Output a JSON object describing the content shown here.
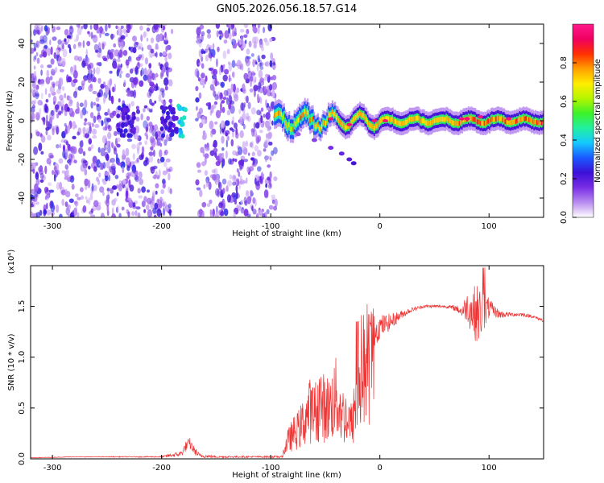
{
  "title": "GN05.2026.056.18.57.G14",
  "chart_data": [
    {
      "type": "heatmap",
      "name": "spectrogram",
      "xlabel": "Height of straight line (km)",
      "ylabel": "Frequency (Hz)",
      "xlim": [
        -320,
        150
      ],
      "ylim": [
        -50,
        50
      ],
      "x_ticks": [
        -300,
        -200,
        -100,
        0,
        100
      ],
      "y_ticks": [
        -40,
        -20,
        0,
        20,
        40
      ],
      "grid": false,
      "colorbar": {
        "label": "Normalized spectral amplitude",
        "range": [
          0.0,
          1.0
        ],
        "ticks": [
          0.0,
          0.2,
          0.4,
          0.6,
          0.8
        ],
        "colormap": "rainbow (white-violet-blue-cyan-green-yellow-red-magenta)",
        "colors": [
          "#ffffff",
          "#b98cf0",
          "#7a2ee6",
          "#3b10d6",
          "#1a58ff",
          "#14c8ff",
          "#22f0a0",
          "#3cf22a",
          "#b4f500",
          "#ffee00",
          "#ffa000",
          "#ff3000",
          "#f00060",
          "#ff1a8c"
        ]
      },
      "features": {
        "noise_region_km": [
          -320,
          -95
        ],
        "gap_km": [
          -190,
          -168
        ],
        "signal_start_km": -97,
        "signal_center_hz": 0,
        "strong_bursts_km": [
          -240,
          -178
        ],
        "descending_trace": {
          "x": [
            -75,
            -60,
            -45,
            -35,
            -28,
            -24
          ],
          "y": [
            -7,
            -10,
            -14,
            -17,
            -20,
            -22
          ]
        }
      }
    },
    {
      "type": "line",
      "name": "snr",
      "xlabel": "Height of straight line (km)",
      "ylabel": "SNR (10 * v/v)",
      "y_multiplier": "(x10⁴)",
      "xlim": [
        -320,
        150
      ],
      "ylim": [
        0.0,
        1.9
      ],
      "x_ticks": [
        -300,
        -200,
        -100,
        0,
        100
      ],
      "y_ticks": [
        0.0,
        0.5,
        1.0,
        1.5
      ],
      "y_tick_labels": [
        "0.0",
        "0.5",
        "1.0",
        "1.5"
      ],
      "grid": false,
      "color": "#ee3333",
      "series": [
        {
          "x": [
            -320,
            -280,
            -240,
            -200,
            -182,
            -178,
            -174,
            -170,
            -165,
            -150,
            -120,
            -90,
            -85,
            -80,
            -75,
            -70,
            -65,
            -60,
            -55,
            -50,
            -45,
            -40,
            -35,
            -30,
            -25,
            -20,
            -15,
            -10,
            -5,
            0,
            10,
            20,
            30,
            40,
            50,
            60,
            70,
            75,
            80,
            85,
            90,
            95,
            100,
            105,
            110,
            120,
            130,
            140,
            150
          ],
          "y": [
            0.01,
            0.02,
            0.02,
            0.02,
            0.05,
            0.12,
            0.15,
            0.08,
            0.03,
            0.02,
            0.02,
            0.02,
            0.2,
            0.3,
            0.35,
            0.45,
            0.6,
            0.55,
            0.7,
            0.6,
            0.65,
            0.75,
            0.55,
            0.5,
            0.4,
            1.05,
            1.1,
            1.2,
            1.25,
            1.3,
            1.35,
            1.42,
            1.47,
            1.5,
            1.5,
            1.5,
            1.48,
            1.45,
            1.5,
            1.45,
            1.42,
            1.45,
            1.48,
            1.45,
            1.42,
            1.42,
            1.42,
            1.4,
            1.36
          ],
          "noise_amplitude": [
            0.003,
            0.003,
            0.004,
            0.006,
            0.03,
            0.05,
            0.06,
            0.04,
            0.02,
            0.01,
            0.008,
            0.01,
            0.15,
            0.22,
            0.25,
            0.3,
            0.3,
            0.32,
            0.35,
            0.35,
            0.35,
            0.35,
            0.35,
            0.3,
            0.3,
            0.25,
            0.22,
            0.2,
            0.15,
            0.12,
            0.08,
            0.04,
            0.02,
            0.015,
            0.015,
            0.015,
            0.03,
            0.06,
            0.15,
            0.25,
            0.3,
            0.22,
            0.1,
            0.06,
            0.04,
            0.02,
            0.02,
            0.015,
            0.015
          ]
        }
      ]
    }
  ]
}
